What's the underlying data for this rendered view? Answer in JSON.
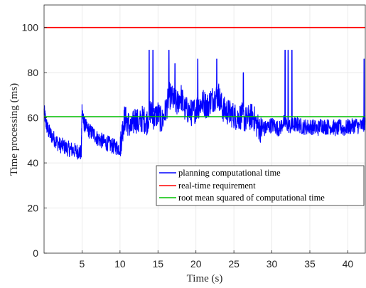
{
  "chart_data": {
    "type": "line",
    "xlabel": "Time (s)",
    "ylabel": "Time processing (ms)",
    "xlim": [
      0,
      42.3
    ],
    "ylim": [
      0,
      110
    ],
    "xticks": [
      5,
      10,
      15,
      20,
      25,
      30,
      35,
      40
    ],
    "yticks": [
      0,
      20,
      40,
      60,
      80,
      100
    ],
    "grid": true,
    "legend_position": "lower-right",
    "series": [
      {
        "name": "planning computational time",
        "color": "#0000ff",
        "style": "noisy-line",
        "x": [
          0.0,
          0.3,
          0.6,
          1.0,
          1.5,
          2.0,
          2.5,
          3.0,
          3.5,
          4.0,
          4.5,
          4.9,
          5.0,
          5.2,
          5.5,
          6.0,
          6.5,
          7.0,
          7.5,
          8.0,
          8.5,
          9.0,
          9.5,
          10.0,
          10.3,
          10.6,
          11.0,
          11.5,
          12.0,
          12.5,
          13.0,
          13.5,
          14.0,
          14.5,
          15.0,
          15.5,
          16.0,
          16.5,
          17.0,
          17.5,
          18.0,
          18.5,
          19.0,
          19.5,
          20.0,
          20.5,
          21.0,
          21.5,
          22.0,
          22.5,
          23.0,
          23.5,
          24.0,
          24.5,
          25.0,
          25.5,
          26.0,
          26.5,
          27.0,
          27.5,
          28.0,
          28.5,
          29.0,
          29.5,
          30.0,
          30.5,
          31.0,
          31.5,
          32.0,
          32.5,
          33.0,
          33.5,
          34.0,
          34.5,
          35.0,
          35.5,
          36.0,
          36.5,
          37.0,
          37.5,
          38.0,
          38.5,
          39.0,
          39.5,
          40.0,
          40.5,
          41.0,
          41.5,
          42.0,
          42.3
        ],
        "values": [
          63,
          57,
          54,
          52,
          50,
          48,
          47.5,
          46.5,
          46,
          45.5,
          45,
          44.5,
          64,
          58,
          56,
          54,
          53,
          51,
          50,
          49,
          48.5,
          47.5,
          47,
          46.5,
          54,
          60,
          58,
          55,
          60,
          57,
          60,
          58,
          63,
          60,
          62,
          58,
          63,
          70,
          68,
          66,
          70,
          64,
          63,
          62,
          64,
          66,
          67,
          65,
          68,
          69,
          70,
          64,
          63,
          62,
          61,
          60,
          61,
          59,
          60,
          61,
          57,
          55,
          55,
          56,
          57,
          56,
          55,
          58,
          57,
          56,
          57,
          57,
          56,
          56,
          56,
          56,
          55,
          57,
          56,
          56,
          56,
          55,
          56,
          55,
          56,
          56,
          57,
          56,
          57,
          58
        ],
        "spikes": [
          {
            "x": 13.8,
            "y": 90
          },
          {
            "x": 14.3,
            "y": 90
          },
          {
            "x": 16.4,
            "y": 90
          },
          {
            "x": 17.2,
            "y": 84
          },
          {
            "x": 20.2,
            "y": 86
          },
          {
            "x": 22.7,
            "y": 86
          },
          {
            "x": 26.2,
            "y": 80
          },
          {
            "x": 31.7,
            "y": 90
          },
          {
            "x": 32.1,
            "y": 90
          },
          {
            "x": 32.6,
            "y": 90
          },
          {
            "x": 42.1,
            "y": 86
          }
        ]
      },
      {
        "name": "real-time requirement",
        "color": "#ff0000",
        "x": [
          0,
          42.3
        ],
        "values": [
          100,
          100
        ]
      },
      {
        "name": "root mean squared of computational time",
        "color": "#00c000",
        "x": [
          0,
          42.3
        ],
        "values": [
          60.5,
          60.5
        ]
      }
    ]
  }
}
